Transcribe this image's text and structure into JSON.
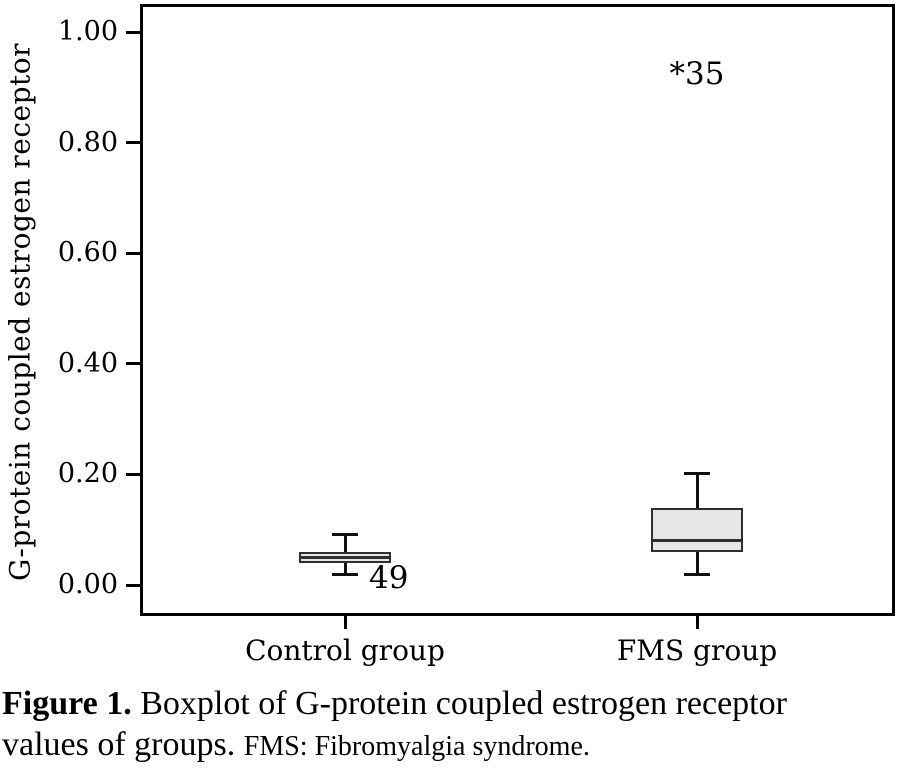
{
  "chart_data": {
    "type": "boxplot",
    "title": "",
    "ylabel": "G-protein coupled estrogen receptor",
    "xlabel": "",
    "ylim": [
      0,
      1.05
    ],
    "grid": false,
    "legend": false,
    "box_fill": "#e6e6e6",
    "box_border": "#2e2e2e",
    "yticks": [
      {
        "value": 0.0,
        "label": "0.00"
      },
      {
        "value": 0.2,
        "label": "0.20"
      },
      {
        "value": 0.4,
        "label": "0.40"
      },
      {
        "value": 0.6,
        "label": "0.60"
      },
      {
        "value": 0.8,
        "label": "0.80"
      },
      {
        "value": 1.0,
        "label": "1.00"
      }
    ],
    "categories": [
      "Control group",
      "FMS group"
    ],
    "series": [
      {
        "name": "Control group",
        "whisker_low": 0.02,
        "q1": 0.04,
        "median": 0.05,
        "q3": 0.06,
        "whisker_high": 0.09,
        "outliers": [
          {
            "label": "49",
            "value": 0.02,
            "extreme": false
          }
        ]
      },
      {
        "name": "FMS group",
        "whisker_low": 0.02,
        "q1": 0.06,
        "median": 0.08,
        "q3": 0.14,
        "whisker_high": 0.2,
        "outliers": [
          {
            "label": "*35",
            "value": 0.92,
            "extreme": true
          }
        ]
      }
    ]
  },
  "caption": {
    "label": "Figure 1.",
    "line1": "Boxplot of G-protein coupled estrogen receptor",
    "line2": "values of groups.",
    "note": "FMS: Fibromyalgia syndrome."
  }
}
